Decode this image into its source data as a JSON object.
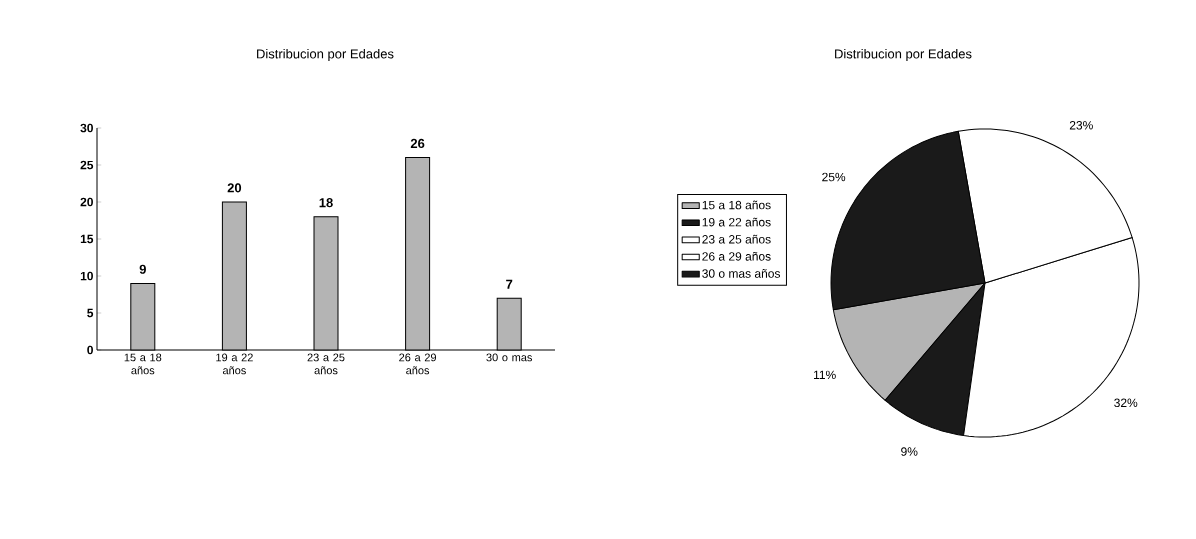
{
  "chart_data": [
    {
      "type": "bar",
      "title": "Distribucion por Edades",
      "categories": [
        "15 a 18 años",
        "19 a 22 años",
        "23 a 25 años",
        "26 a 29 años",
        "30 o mas"
      ],
      "values": [
        9,
        20,
        18,
        26,
        7
      ],
      "color": "#b4b4b4",
      "ylim": [
        0,
        30
      ],
      "yticks": [
        0,
        5,
        10,
        15,
        20,
        25,
        30
      ],
      "data_labels": true
    },
    {
      "type": "pie",
      "title": "Distribucion por Edades",
      "categories": [
        "15 a 18 años",
        "19 a 22 años",
        "23 a 25 años",
        "26 a 29 años",
        "30 o mas años"
      ],
      "values": [
        11,
        9,
        32,
        23,
        25
      ],
      "value_labels": [
        "11%",
        "9%",
        "32%",
        "23%",
        "25%"
      ],
      "colors": [
        "#b4b4b4",
        "#1a1a1a",
        "#ffffff",
        "#ffffff",
        "#1a1a1a"
      ],
      "legend": "left"
    }
  ]
}
